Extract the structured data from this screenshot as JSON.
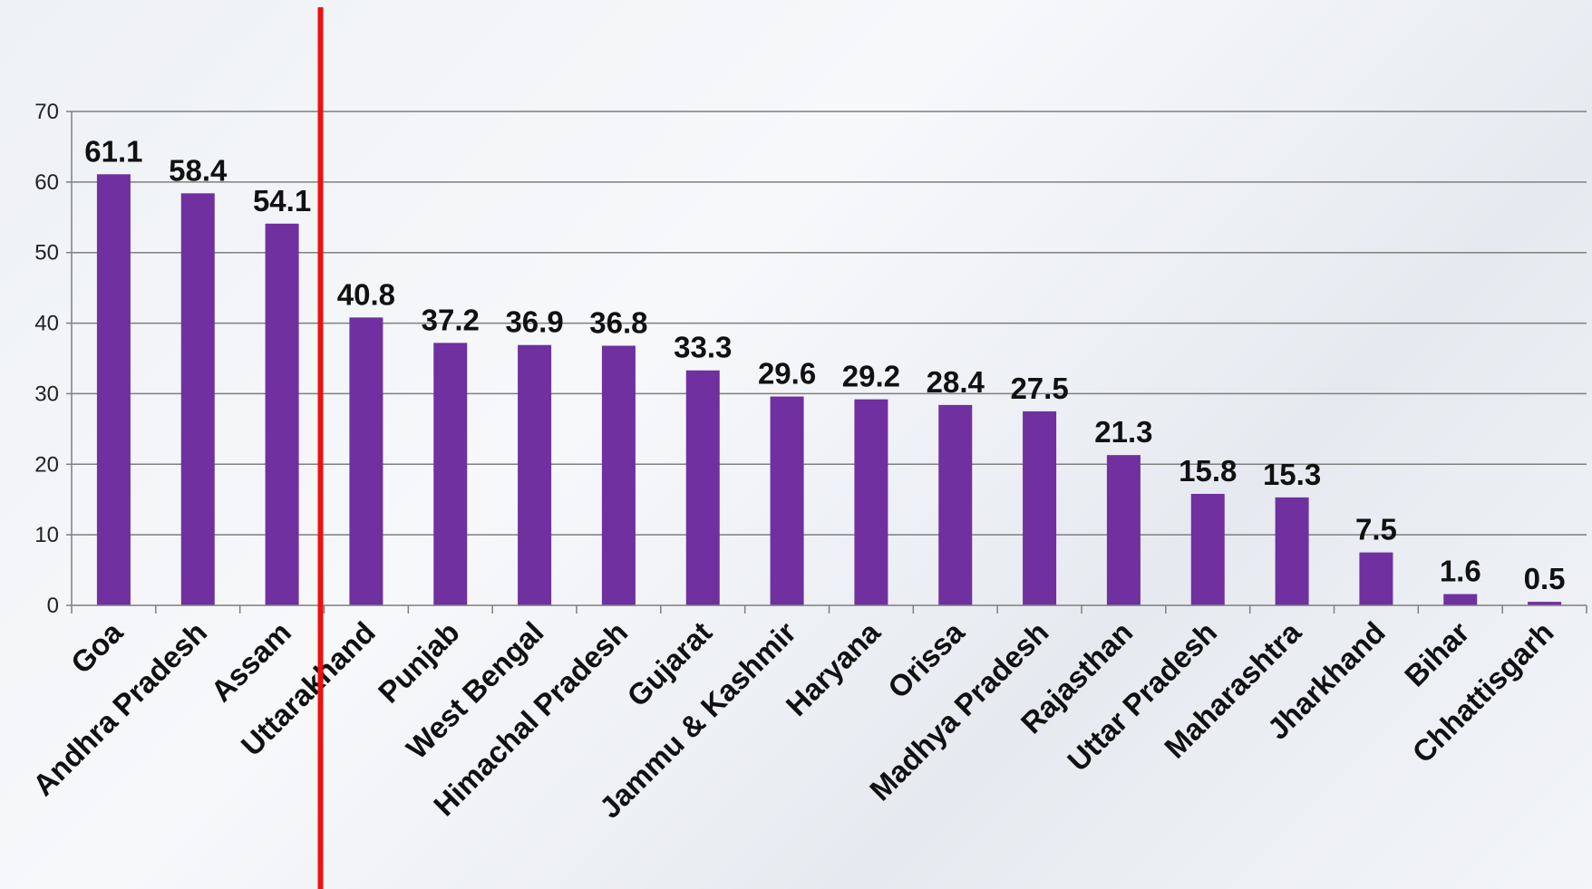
{
  "chart_data": {
    "type": "bar",
    "categories": [
      "Goa",
      "Andhra Pradesh",
      "Assam",
      "Uttarakhand",
      "Punjab",
      "West Bengal",
      "Himachal Pradesh",
      "Gujarat",
      "Jammu & Kashmir",
      "Haryana",
      "Orissa",
      "Madhya Pradesh",
      "Rajasthan",
      "Uttar Pradesh",
      "Maharashtra",
      "Jharkhand",
      "Bihar",
      "Chhattisgarh"
    ],
    "values": [
      61.1,
      58.4,
      54.1,
      40.8,
      37.2,
      36.9,
      36.8,
      33.3,
      29.6,
      29.2,
      28.4,
      27.5,
      21.3,
      15.8,
      15.3,
      7.5,
      1.6,
      0.5
    ],
    "value_labels": [
      "61.1",
      "58.4",
      "54.1",
      "40.8",
      "37.2",
      "36.9",
      "36.8",
      "33.3",
      "29.6",
      "29.2",
      "28.4",
      "27.5",
      "21.3",
      "15.8",
      "15.3",
      "7.5",
      "1.6",
      "0.5"
    ],
    "yticks": [
      0,
      10,
      20,
      30,
      40,
      50,
      60,
      70
    ],
    "ylim": [
      0,
      70
    ],
    "grid": true,
    "bar_color": "#7030a0",
    "divider_color": "#ee1111",
    "divider_after_category": "Assam"
  }
}
